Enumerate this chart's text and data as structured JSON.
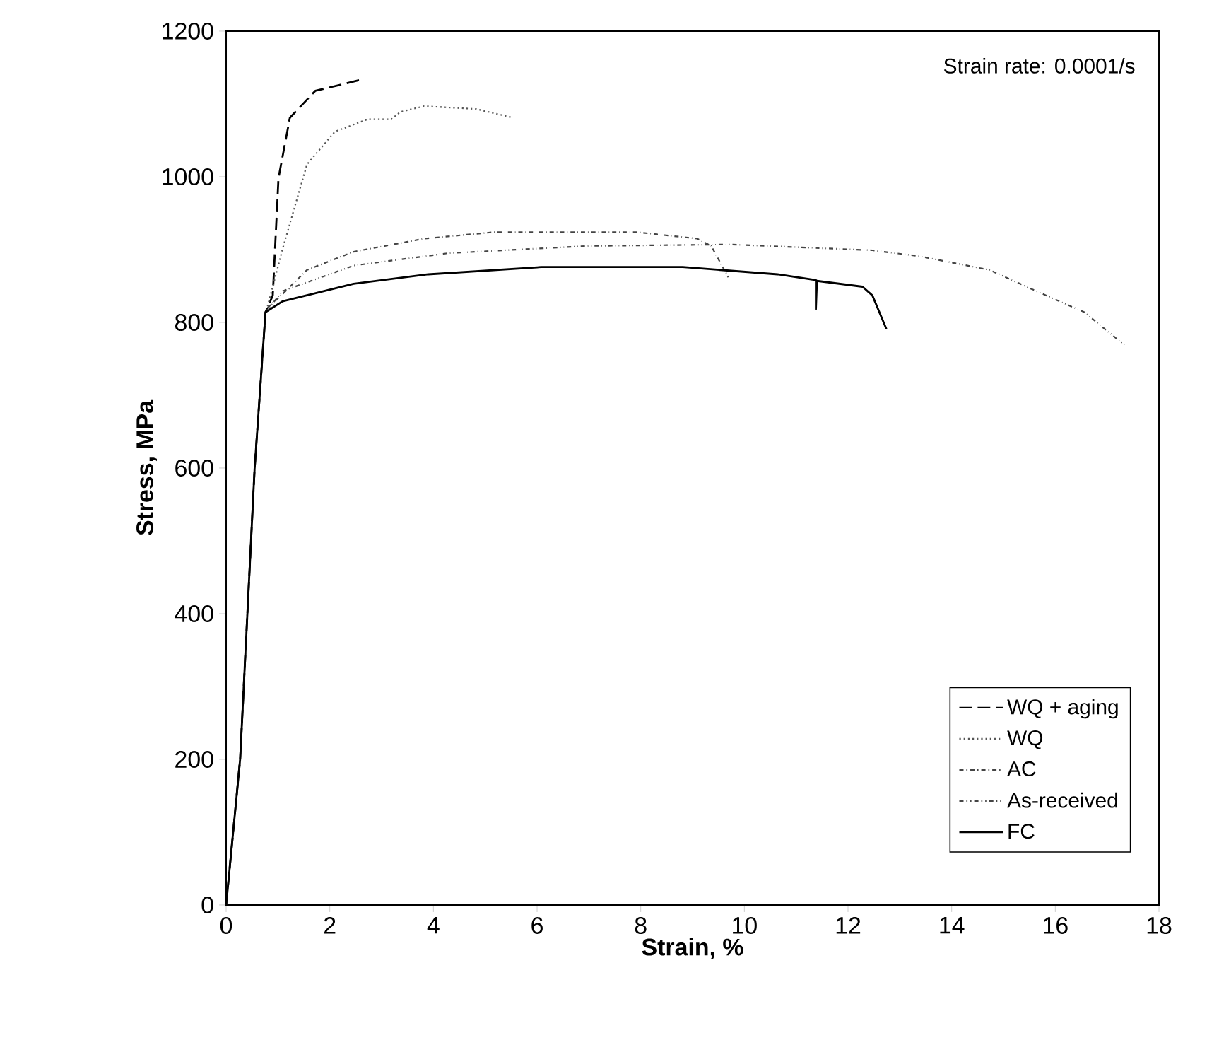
{
  "chart_data": {
    "type": "line",
    "xlabel": "Strain, %",
    "ylabel": "Stress, MPa",
    "annotations": [
      "Strain rate: 0.0001/s"
    ],
    "xlim": [
      0,
      18
    ],
    "ylim": [
      0,
      1200
    ],
    "xticks": [
      0,
      2,
      4,
      6,
      8,
      10,
      12,
      14,
      16,
      18
    ],
    "yticks": [
      0,
      200,
      400,
      600,
      800,
      1000,
      1200
    ],
    "grid": false,
    "legend": "bottom right",
    "marker": "none",
    "series": [
      {
        "name": "WQ + aging",
        "color": "#000000",
        "line_style": "dashed",
        "x": [
          0,
          0.27,
          0.55,
          0.76,
          0.9,
          1.01,
          1.23,
          1.72,
          2.65
        ],
        "values": [
          0,
          200,
          600,
          814,
          837,
          998,
          1081,
          1118,
          1134
        ]
      },
      {
        "name": "WQ",
        "color": "#555555",
        "line_style": "dotted",
        "x": [
          0.8,
          1.09,
          1.56,
          2.1,
          2.73,
          3.19,
          3.36,
          3.82,
          4.83,
          5.54
        ],
        "values": [
          822,
          901,
          1017,
          1062,
          1079,
          1079,
          1089,
          1097,
          1093,
          1081
        ]
      },
      {
        "name": "AC",
        "color": "#444444",
        "line_style": "dashdot",
        "x": [
          0.8,
          1.09,
          1.56,
          2.46,
          3.82,
          5.18,
          7.91,
          9.09,
          9.36,
          9.69
        ],
        "values": [
          820,
          839,
          872,
          897,
          915,
          924,
          924,
          915,
          905,
          862
        ]
      },
      {
        "name": "As-received",
        "color": "#444444",
        "line_style": "dashdotdot",
        "x": [
          0,
          0.27,
          0.55,
          0.76,
          1.09,
          2.46,
          4.28,
          7.01,
          9.74,
          12.47,
          13.37,
          14.73,
          15.63,
          16.56,
          17.33
        ],
        "values": [
          0,
          200,
          600,
          814,
          843,
          878,
          895,
          905,
          907,
          899,
          891,
          872,
          843,
          814,
          769
        ]
      },
      {
        "name": "FC",
        "color": "#000000",
        "line_style": "solid",
        "x": [
          0,
          0.27,
          0.55,
          0.76,
          1.09,
          2.46,
          3.9,
          6.08,
          8.81,
          10.64,
          11.38,
          11.38,
          11.4,
          12.28,
          12.47,
          12.74
        ],
        "values": [
          0,
          200,
          600,
          814,
          829,
          853,
          866,
          876,
          876,
          866,
          858,
          818,
          857,
          849,
          837,
          791
        ]
      }
    ]
  }
}
